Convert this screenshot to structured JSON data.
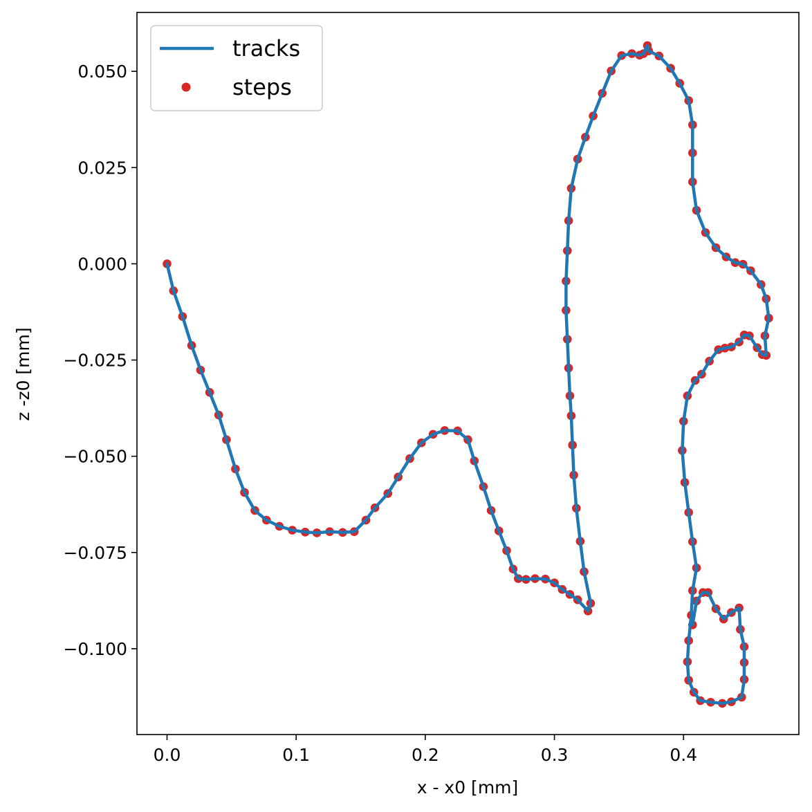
{
  "chart_data": {
    "type": "scatter",
    "xlabel": "x - x0 [mm]",
    "ylabel": "z -z0 [mm]",
    "xlim": [
      -0.0233,
      0.4893
    ],
    "ylim": [
      -0.1223,
      0.0653
    ],
    "xticks": [
      0.0,
      0.1,
      0.2,
      0.3,
      0.4
    ],
    "xtick_labels": [
      "0.0",
      "0.1",
      "0.2",
      "0.3",
      "0.4"
    ],
    "yticks": [
      0.05,
      0.025,
      0.0,
      -0.025,
      -0.05,
      -0.075,
      -0.1
    ],
    "ytick_labels": [
      "0.050",
      "0.025",
      "0.000",
      "−0.025",
      "−0.050",
      "−0.075",
      "−0.100"
    ],
    "grid": false,
    "legend_position": "top-left",
    "series": [
      {
        "name": "tracks",
        "kind": "line",
        "color": "#1f77b4"
      },
      {
        "name": "steps",
        "kind": "points",
        "color": "#d62728"
      }
    ],
    "points": [
      [
        0.0,
        0.0
      ],
      [
        0.005,
        -0.007
      ],
      [
        0.012,
        -0.0137
      ],
      [
        0.019,
        -0.0212
      ],
      [
        0.026,
        -0.0276
      ],
      [
        0.033,
        -0.0334
      ],
      [
        0.04,
        -0.0393
      ],
      [
        0.046,
        -0.0457
      ],
      [
        0.053,
        -0.0533
      ],
      [
        0.06,
        -0.0594
      ],
      [
        0.068,
        -0.0641
      ],
      [
        0.077,
        -0.0666
      ],
      [
        0.087,
        -0.0682
      ],
      [
        0.097,
        -0.0692
      ],
      [
        0.107,
        -0.0697
      ],
      [
        0.116,
        -0.0699
      ],
      [
        0.126,
        -0.0696
      ],
      [
        0.136,
        -0.0698
      ],
      [
        0.145,
        -0.0696
      ],
      [
        0.154,
        -0.0666
      ],
      [
        0.161,
        -0.0634
      ],
      [
        0.171,
        -0.0597
      ],
      [
        0.179,
        -0.0554
      ],
      [
        0.188,
        -0.0506
      ],
      [
        0.197,
        -0.0465
      ],
      [
        0.206,
        -0.0443
      ],
      [
        0.215,
        -0.0433
      ],
      [
        0.225,
        -0.0434
      ],
      [
        0.233,
        -0.0457
      ],
      [
        0.238,
        -0.0512
      ],
      [
        0.245,
        -0.0579
      ],
      [
        0.251,
        -0.0641
      ],
      [
        0.257,
        -0.0694
      ],
      [
        0.263,
        -0.0745
      ],
      [
        0.268,
        -0.0793
      ],
      [
        0.272,
        -0.0818
      ],
      [
        0.278,
        -0.082
      ],
      [
        0.285,
        -0.0818
      ],
      [
        0.293,
        -0.0819
      ],
      [
        0.3,
        -0.0829
      ],
      [
        0.306,
        -0.0846
      ],
      [
        0.312,
        -0.0859
      ],
      [
        0.318,
        -0.0873
      ],
      [
        0.326,
        -0.0902
      ],
      [
        0.328,
        -0.0882
      ],
      [
        0.323,
        -0.08
      ],
      [
        0.32,
        -0.0721
      ],
      [
        0.317,
        -0.0635
      ],
      [
        0.315,
        -0.0549
      ],
      [
        0.314,
        -0.0471
      ],
      [
        0.313,
        -0.0395
      ],
      [
        0.312,
        -0.0343
      ],
      [
        0.311,
        -0.0271
      ],
      [
        0.31,
        -0.0196
      ],
      [
        0.309,
        -0.0121
      ],
      [
        0.309,
        -0.0045
      ],
      [
        0.31,
        0.0034
      ],
      [
        0.311,
        0.0112
      ],
      [
        0.313,
        0.0196
      ],
      [
        0.318,
        0.0272
      ],
      [
        0.324,
        0.0329
      ],
      [
        0.33,
        0.0384
      ],
      [
        0.337,
        0.0443
      ],
      [
        0.344,
        0.0501
      ],
      [
        0.352,
        0.0541
      ],
      [
        0.36,
        0.0546
      ],
      [
        0.366,
        0.0542
      ],
      [
        0.369,
        0.0546
      ],
      [
        0.372,
        0.0567
      ],
      [
        0.373,
        0.0553
      ],
      [
        0.381,
        0.054
      ],
      [
        0.39,
        0.0508
      ],
      [
        0.397,
        0.0469
      ],
      [
        0.404,
        0.0424
      ],
      [
        0.407,
        0.0361
      ],
      [
        0.407,
        0.0288
      ],
      [
        0.407,
        0.0213
      ],
      [
        0.41,
        0.0139
      ],
      [
        0.417,
        0.0081
      ],
      [
        0.425,
        0.0042
      ],
      [
        0.433,
        0.0018
      ],
      [
        0.44,
        0.0003
      ],
      [
        0.446,
        -0.0001
      ],
      [
        0.452,
        -0.0018
      ],
      [
        0.46,
        -0.0054
      ],
      [
        0.464,
        -0.0091
      ],
      [
        0.466,
        -0.0141
      ],
      [
        0.463,
        -0.0187
      ],
      [
        0.464,
        -0.0238
      ],
      [
        0.461,
        -0.0236
      ],
      [
        0.457,
        -0.0218
      ],
      [
        0.451,
        -0.0187
      ],
      [
        0.447,
        -0.0185
      ],
      [
        0.443,
        -0.0203
      ],
      [
        0.437,
        -0.0216
      ],
      [
        0.432,
        -0.0219
      ],
      [
        0.427,
        -0.0223
      ],
      [
        0.42,
        -0.0253
      ],
      [
        0.414,
        -0.0287
      ],
      [
        0.409,
        -0.0303
      ],
      [
        0.403,
        -0.0343
      ],
      [
        0.4,
        -0.0409
      ],
      [
        0.399,
        -0.0485
      ],
      [
        0.401,
        -0.0568
      ],
      [
        0.404,
        -0.0646
      ],
      [
        0.407,
        -0.0722
      ],
      [
        0.41,
        -0.079
      ],
      [
        0.407,
        -0.0849
      ],
      [
        0.406,
        -0.0913
      ],
      [
        0.404,
        -0.0979
      ],
      [
        0.403,
        -0.1034
      ],
      [
        0.404,
        -0.1082
      ],
      [
        0.408,
        -0.1113
      ],
      [
        0.413,
        -0.1135
      ],
      [
        0.421,
        -0.1139
      ],
      [
        0.43,
        -0.1142
      ],
      [
        0.437,
        -0.1138
      ],
      [
        0.445,
        -0.1126
      ],
      [
        0.447,
        -0.108
      ],
      [
        0.447,
        -0.1036
      ],
      [
        0.447,
        -0.0995
      ],
      [
        0.444,
        -0.095
      ],
      [
        0.443,
        -0.0894
      ],
      [
        0.437,
        -0.0906
      ],
      [
        0.431,
        -0.0923
      ],
      [
        0.425,
        -0.0896
      ],
      [
        0.419,
        -0.0854
      ],
      [
        0.415,
        -0.0854
      ],
      [
        0.41,
        -0.0876
      ],
      [
        0.407,
        -0.0938
      ]
    ]
  }
}
